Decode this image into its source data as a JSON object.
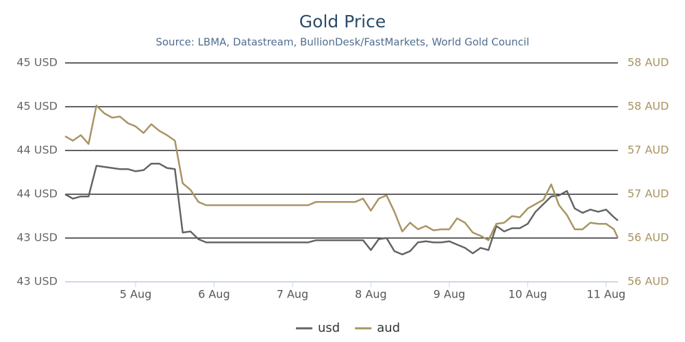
{
  "chart_data": {
    "type": "line",
    "title": "Gold Price",
    "subtitle": "Source: LBMA, Datastream, BullionDesk/FastMarkets, World Gold Council",
    "x": [
      4.1,
      4.2,
      4.3,
      4.4,
      4.5,
      4.6,
      4.7,
      4.8,
      4.9,
      5.0,
      5.1,
      5.2,
      5.3,
      5.4,
      5.5,
      5.6,
      5.7,
      5.8,
      5.9,
      6.0,
      6.1,
      6.2,
      6.3,
      6.4,
      6.5,
      6.6,
      6.7,
      6.8,
      6.9,
      7.0,
      7.1,
      7.2,
      7.3,
      7.4,
      7.5,
      7.6,
      7.7,
      7.8,
      7.9,
      8.0,
      8.1,
      8.2,
      8.3,
      8.4,
      8.5,
      8.6,
      8.7,
      8.8,
      8.9,
      9.0,
      9.1,
      9.2,
      9.3,
      9.4,
      9.5,
      9.6,
      9.7,
      9.8,
      9.9,
      10.0,
      10.1,
      10.2,
      10.3,
      10.4,
      10.5,
      10.6,
      10.7,
      10.8,
      10.9,
      11.0,
      11.1,
      11.15
    ],
    "xlim": [
      4.1,
      11.15
    ],
    "xticks": [
      {
        "value": 5,
        "label": "5 Aug"
      },
      {
        "value": 6,
        "label": "6 Aug"
      },
      {
        "value": 7,
        "label": "7 Aug"
      },
      {
        "value": 8,
        "label": "8 Aug"
      },
      {
        "value": 9,
        "label": "9 Aug"
      },
      {
        "value": 10,
        "label": "10 Aug"
      },
      {
        "value": 11,
        "label": "11 Aug"
      }
    ],
    "ylim": [
      43,
      45
    ],
    "yticks": [
      {
        "value": 43,
        "label": "43 USD"
      },
      {
        "value": 43.4,
        "label": "43 USD"
      },
      {
        "value": 43.8,
        "label": "44 USD"
      },
      {
        "value": 44.2,
        "label": "44 USD"
      },
      {
        "value": 44.6,
        "label": "45 USD"
      },
      {
        "value": 45,
        "label": "45 USD"
      }
    ],
    "y2lim": [
      56,
      58
    ],
    "y2ticks": [
      {
        "value": 56,
        "label": "56 AUD"
      },
      {
        "value": 56.4,
        "label": "56 AUD"
      },
      {
        "value": 56.8,
        "label": "57 AUD"
      },
      {
        "value": 57.2,
        "label": "57 AUD"
      },
      {
        "value": 57.6,
        "label": "58 AUD"
      },
      {
        "value": 58,
        "label": "58 AUD"
      }
    ],
    "grid": true,
    "legend": "bottom",
    "series": [
      {
        "name": "usd",
        "color": "#636363",
        "values": [
          43.8,
          43.76,
          43.78,
          43.78,
          44.06,
          44.05,
          44.04,
          44.03,
          44.03,
          44.01,
          44.02,
          44.08,
          44.08,
          44.04,
          44.03,
          43.45,
          43.46,
          43.39,
          43.36,
          43.36,
          43.36,
          43.36,
          43.36,
          43.36,
          43.36,
          43.36,
          43.36,
          43.36,
          43.36,
          43.36,
          43.36,
          43.36,
          43.38,
          43.38,
          43.38,
          43.38,
          43.38,
          43.38,
          43.38,
          43.29,
          43.39,
          43.4,
          43.28,
          43.25,
          43.28,
          43.36,
          43.37,
          43.36,
          43.36,
          43.37,
          43.34,
          43.31,
          43.26,
          43.31,
          43.29,
          43.51,
          43.46,
          43.49,
          43.49,
          43.53,
          43.64,
          43.71,
          43.78,
          43.79,
          43.83,
          43.67,
          43.63,
          43.66,
          43.64,
          43.66,
          43.59,
          43.56
        ]
      },
      {
        "name": "aud",
        "color": "#a89362",
        "axis": "y2",
        "values": [
          57.33,
          57.29,
          57.34,
          57.26,
          57.61,
          57.54,
          57.5,
          57.51,
          57.45,
          57.42,
          57.36,
          57.44,
          57.38,
          57.34,
          57.29,
          56.9,
          56.84,
          56.73,
          56.7,
          56.7,
          56.7,
          56.7,
          56.7,
          56.7,
          56.7,
          56.7,
          56.7,
          56.7,
          56.7,
          56.7,
          56.7,
          56.7,
          56.73,
          56.73,
          56.73,
          56.73,
          56.73,
          56.73,
          56.76,
          56.65,
          56.76,
          56.79,
          56.64,
          56.46,
          56.54,
          56.48,
          56.51,
          56.47,
          56.48,
          56.48,
          56.58,
          56.54,
          56.45,
          56.42,
          56.38,
          56.53,
          56.54,
          56.6,
          56.59,
          56.67,
          56.71,
          56.75,
          56.89,
          56.7,
          56.61,
          56.48,
          56.48,
          56.54,
          56.53,
          56.53,
          56.48,
          56.4
        ]
      }
    ]
  }
}
